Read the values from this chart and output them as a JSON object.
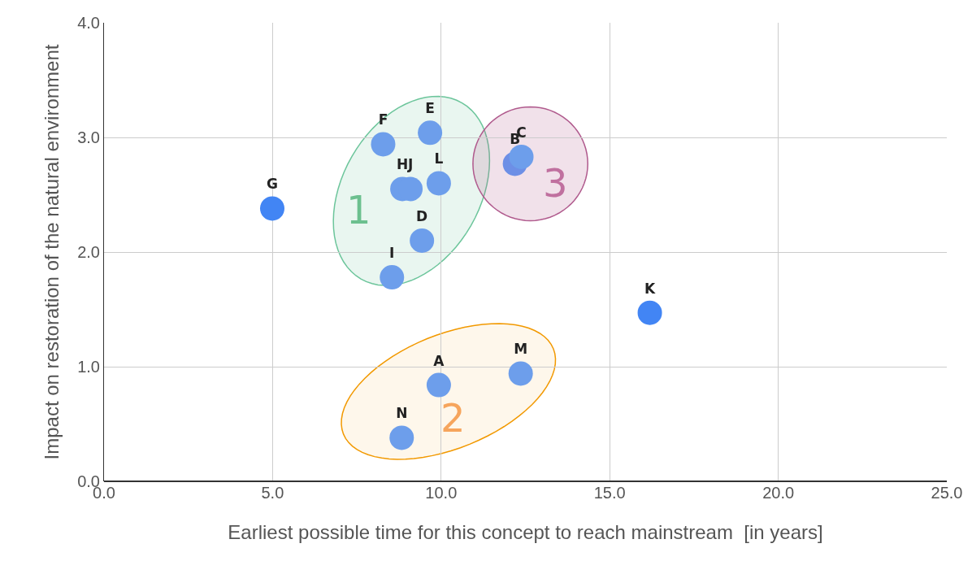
{
  "chart_data": {
    "type": "scatter",
    "xlabel": "Earliest possible time for this concept to reach mainstream  [in years]",
    "ylabel": "Impact on restoration of the natural environment",
    "x": [
      4.99,
      8.28,
      9.67,
      8.85,
      9.09,
      9.93,
      9.43,
      8.54,
      12.19,
      12.38,
      16.19,
      9.93,
      12.36,
      8.83
    ],
    "values": [
      2.38,
      2.94,
      3.04,
      2.55,
      2.55,
      2.6,
      2.1,
      1.78,
      2.77,
      2.83,
      1.47,
      0.84,
      0.94,
      0.38
    ],
    "value_labels": [
      "G",
      "F",
      "E",
      "H",
      "J",
      "L",
      "D",
      "I",
      "B",
      "C",
      "K",
      "A",
      "M",
      "N"
    ],
    "colors": [
      "#4285f4",
      "#6d9eeb",
      "#6d9eeb",
      "#6d9eeb",
      "#6d9eeb",
      "#6d9eeb",
      "#6d9eeb",
      "#6d9eeb",
      "#6d8fe6",
      "#6d9eeb",
      "#4285f4",
      "#6d9eeb",
      "#6d9eeb",
      "#6d9eeb"
    ],
    "xlim": [
      0,
      25
    ],
    "xticks": [
      {
        "value": 0,
        "label": "0.0"
      },
      {
        "value": 5,
        "label": "5.0"
      },
      {
        "value": 10,
        "label": "10.0"
      },
      {
        "value": 15,
        "label": "15.0"
      },
      {
        "value": 20,
        "label": "20.0"
      },
      {
        "value": 25,
        "label": "25.0"
      }
    ],
    "ylim": [
      0,
      4
    ],
    "yticks": [
      {
        "value": 0,
        "label": "0.0"
      },
      {
        "value": 1,
        "label": "1.0"
      },
      {
        "value": 2,
        "label": "2.0"
      },
      {
        "value": 3,
        "label": "3.0"
      },
      {
        "value": 4,
        "label": "4.0"
      }
    ],
    "grid": true,
    "marker": "circle",
    "annotations": [
      "1",
      "2",
      "3"
    ]
  }
}
